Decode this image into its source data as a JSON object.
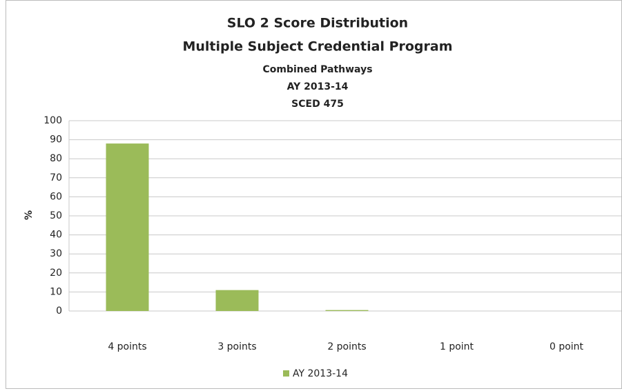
{
  "chart_data": {
    "type": "bar",
    "title": [
      "SLO 2 Score Distribution",
      "Multiple Subject Credential Program"
    ],
    "subtitle": [
      "Combined Pathways",
      "AY 2013-14",
      "SCED 475"
    ],
    "y_label": "%",
    "categories": [
      "4 points",
      "3 points",
      "2 points",
      "1 point",
      "0 point"
    ],
    "series": [
      {
        "name": "AY 2013-14",
        "color": "#9bbb59",
        "values": [
          88,
          11,
          0.5,
          0,
          0
        ]
      }
    ],
    "ylim": [
      0,
      100
    ],
    "yticks": [
      0,
      10,
      20,
      30,
      40,
      50,
      60,
      70,
      80,
      90,
      100
    ],
    "grid": true,
    "legend": "bottom"
  }
}
